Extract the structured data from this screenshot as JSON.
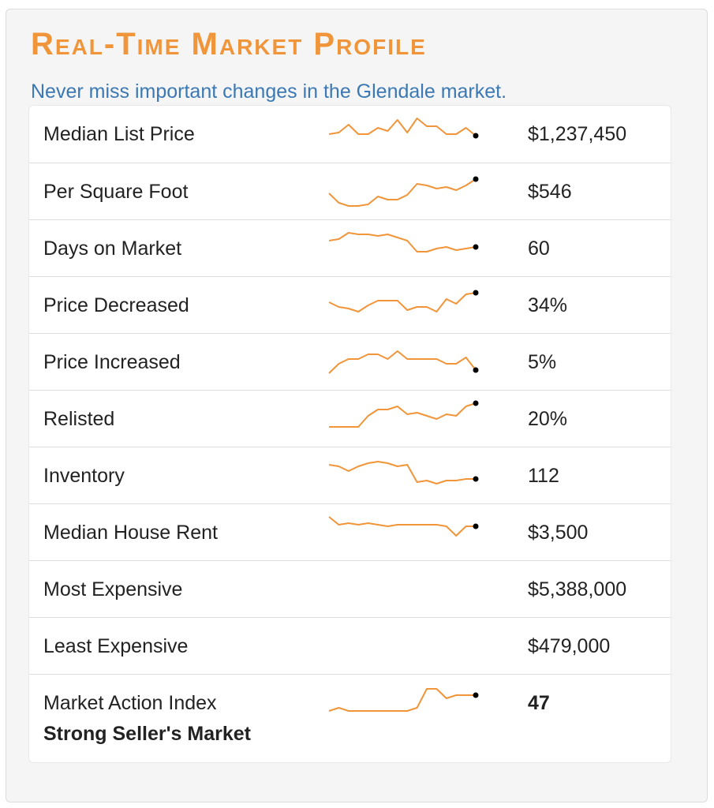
{
  "header": {
    "title": "Real-Time Market Profile",
    "subtitle": "Never miss important changes in the Glendale market."
  },
  "colors": {
    "title": "#f0953a",
    "subtitle": "#3b78b4",
    "sparkline": "#f0953a",
    "endpoint": "#000000"
  },
  "rows": [
    {
      "label": "Median List Price",
      "value": "$1,237,450"
    },
    {
      "label": "Per Square Foot",
      "value": "$546"
    },
    {
      "label": "Days on Market",
      "value": "60"
    },
    {
      "label": "Price Decreased",
      "value": "34%"
    },
    {
      "label": "Price Increased",
      "value": "5%"
    },
    {
      "label": "Relisted",
      "value": "20%"
    },
    {
      "label": "Inventory",
      "value": "112"
    },
    {
      "label": "Median House Rent",
      "value": "$3,500"
    },
    {
      "label": "Most Expensive",
      "value": "$5,388,000"
    },
    {
      "label": "Least Expensive",
      "value": "$479,000"
    },
    {
      "label": "Market Action Index",
      "sublabel": "Strong Seller's Market",
      "value": "47"
    }
  ],
  "sparklines": [
    [
      1.0,
      1.1,
      1.6,
      1.0,
      1.0,
      1.4,
      1.2,
      1.9,
      1.1,
      2.0,
      1.5,
      1.5,
      1.0,
      1.0,
      1.4,
      0.9
    ],
    [
      0.9,
      0.3,
      0.1,
      0.1,
      0.2,
      0.7,
      0.5,
      0.5,
      0.8,
      1.5,
      1.4,
      1.2,
      1.3,
      1.1,
      1.4,
      1.8
    ],
    [
      1.5,
      1.6,
      2.0,
      1.9,
      1.9,
      1.8,
      1.9,
      1.7,
      1.5,
      0.8,
      0.8,
      1.0,
      1.1,
      0.9,
      1.0,
      1.1
    ],
    [
      1.2,
      0.9,
      0.8,
      0.6,
      1.0,
      1.3,
      1.3,
      1.3,
      0.7,
      0.9,
      0.9,
      0.6,
      1.4,
      1.1,
      1.7,
      1.8
    ],
    [
      0.3,
      0.9,
      1.2,
      1.2,
      1.5,
      1.5,
      1.2,
      1.7,
      1.2,
      1.2,
      1.2,
      1.2,
      0.9,
      0.9,
      1.3,
      0.5
    ],
    [
      0.5,
      0.5,
      0.5,
      0.5,
      1.2,
      1.6,
      1.6,
      1.8,
      1.3,
      1.4,
      1.2,
      1.0,
      1.3,
      1.2,
      1.8,
      2.0
    ],
    [
      1.7,
      1.6,
      1.3,
      1.6,
      1.8,
      1.9,
      1.8,
      1.6,
      1.7,
      0.6,
      0.7,
      0.5,
      0.7,
      0.7,
      0.8,
      0.8
    ],
    [
      2.0,
      1.5,
      1.6,
      1.5,
      1.6,
      1.5,
      1.4,
      1.5,
      1.5,
      1.5,
      1.5,
      1.5,
      1.4,
      0.8,
      1.4,
      1.4
    ],
    null,
    null,
    [
      0.5,
      0.7,
      0.5,
      0.5,
      0.5,
      0.5,
      0.5,
      0.5,
      0.5,
      0.7,
      1.9,
      1.9,
      1.3,
      1.5,
      1.5,
      1.5
    ]
  ]
}
